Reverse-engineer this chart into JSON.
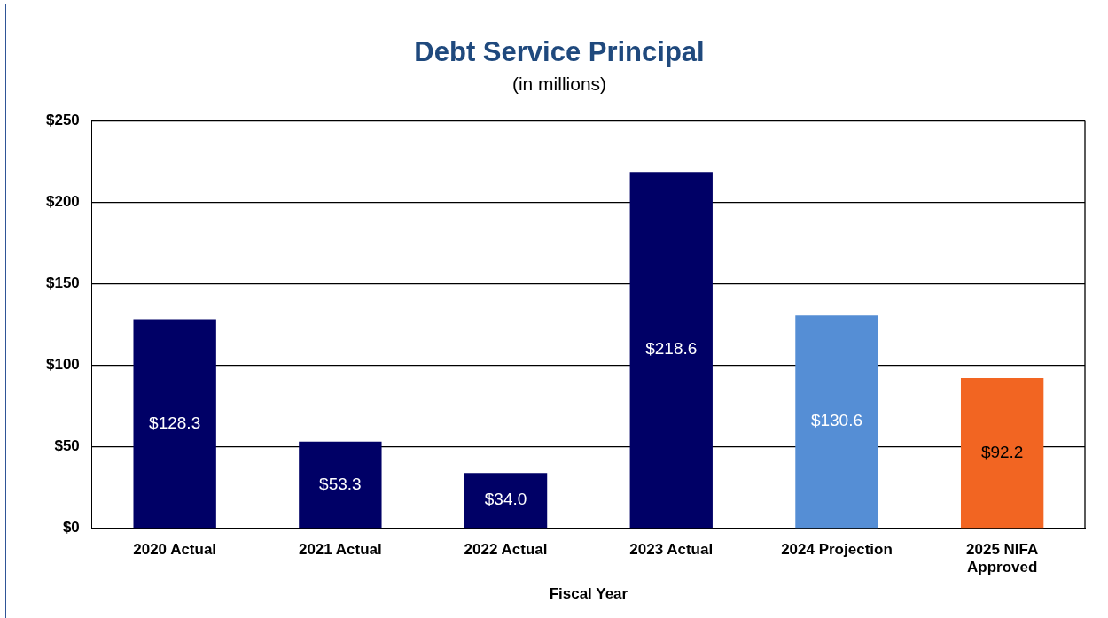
{
  "chart_data": {
    "type": "bar",
    "title": "Debt Service Principal",
    "subtitle": "(in millions)",
    "xlabel": "Fiscal Year",
    "categories": [
      "2020 Actual",
      "2021 Actual",
      "2022 Actual",
      "2023 Actual",
      "2024 Projection",
      "2025 NIFA Approved"
    ],
    "values": [
      128.3,
      53.3,
      34.0,
      218.6,
      130.6,
      92.2
    ],
    "colors": [
      "#000066",
      "#000066",
      "#000066",
      "#000066",
      "#558ed5",
      "#f26522"
    ],
    "value_labels": [
      "$128.3",
      "$53.3",
      "$34.0",
      "$218.6",
      "$130.6",
      "$92.2"
    ],
    "ylim": [
      0,
      250
    ],
    "yticks": [
      {
        "value": 0,
        "label": "$0"
      },
      {
        "value": 50,
        "label": "$50"
      },
      {
        "value": 100,
        "label": "$100"
      },
      {
        "value": 150,
        "label": "$150"
      },
      {
        "value": 200,
        "label": "$200"
      },
      {
        "value": 250,
        "label": "$250"
      }
    ],
    "grid": "y",
    "legend": false
  }
}
